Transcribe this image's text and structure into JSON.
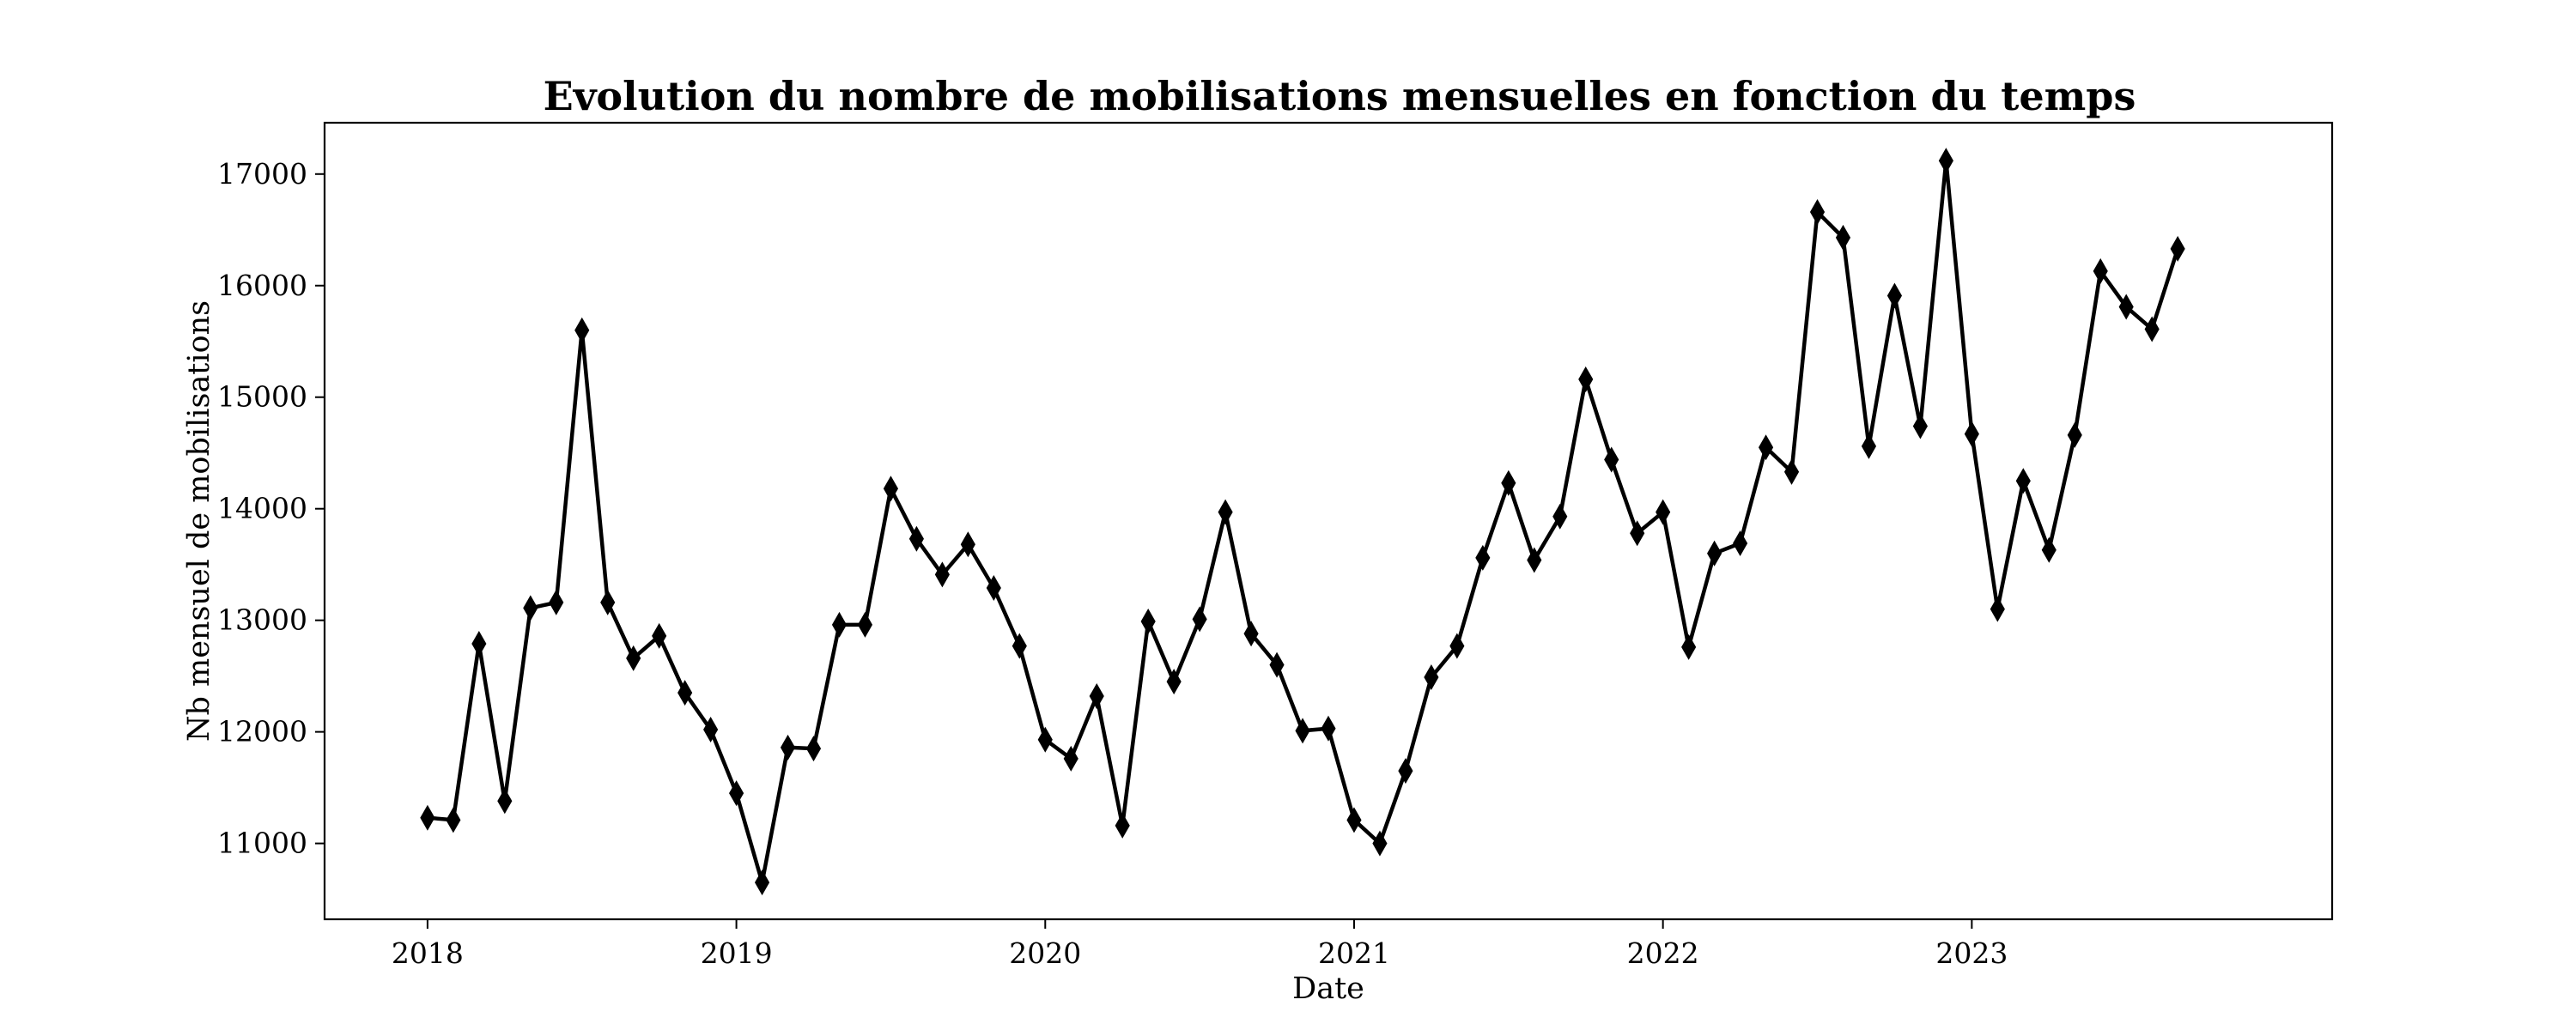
{
  "chart_data": {
    "type": "line",
    "title": "Evolution du nombre de mobilisations mensuelles en fonction du temps",
    "xlabel": "Date",
    "ylabel": "Nb mensuel de mobilisations",
    "x_ticks": [
      "2018",
      "2019",
      "2020",
      "2021",
      "2022",
      "2023"
    ],
    "y_ticks": [
      11000,
      12000,
      13000,
      14000,
      15000,
      16000,
      17000
    ],
    "xlim": [
      "2017-09",
      "2024-03"
    ],
    "ylim": [
      10320,
      17460
    ],
    "grid": false,
    "marker": "thin-diamond",
    "line_color": "#000000",
    "series": [
      {
        "x": [
          "2018-01",
          "2018-02",
          "2018-03",
          "2018-04",
          "2018-05",
          "2018-06",
          "2018-07",
          "2018-08",
          "2018-09",
          "2018-10",
          "2018-11",
          "2018-12",
          "2019-01",
          "2019-02",
          "2019-03",
          "2019-04",
          "2019-05",
          "2019-06",
          "2019-07",
          "2019-08",
          "2019-09",
          "2019-10",
          "2019-11",
          "2019-12",
          "2020-01",
          "2020-02",
          "2020-03",
          "2020-04",
          "2020-05",
          "2020-06",
          "2020-07",
          "2020-08",
          "2020-09",
          "2020-10",
          "2020-11",
          "2020-12",
          "2021-01",
          "2021-02",
          "2021-03",
          "2021-04",
          "2021-05",
          "2021-06",
          "2021-07",
          "2021-08",
          "2021-09",
          "2021-10",
          "2021-11",
          "2021-12",
          "2022-01",
          "2022-02",
          "2022-03",
          "2022-04",
          "2022-05",
          "2022-06",
          "2022-07",
          "2022-08",
          "2022-09",
          "2022-10",
          "2022-11",
          "2022-12",
          "2023-01",
          "2023-02",
          "2023-03",
          "2023-04",
          "2023-05",
          "2023-06",
          "2023-07",
          "2023-08",
          "2023-09"
        ],
        "y": [
          11230,
          11210,
          12790,
          11380,
          13110,
          13160,
          15600,
          13160,
          12660,
          12860,
          12350,
          12020,
          11450,
          10650,
          11860,
          11850,
          12960,
          12960,
          14180,
          13730,
          13410,
          13680,
          13290,
          12770,
          11930,
          11760,
          12320,
          11160,
          12990,
          12450,
          13010,
          13970,
          12880,
          12600,
          12010,
          12030,
          11210,
          11000,
          11650,
          12490,
          12770,
          13560,
          14230,
          13540,
          13930,
          15160,
          14440,
          13780,
          13970,
          12760,
          13600,
          13690,
          14550,
          14330,
          16660,
          16430,
          14560,
          15910,
          14740,
          17120,
          14670,
          13100,
          14250,
          13630,
          14660,
          16130,
          15810,
          15610,
          16330
        ]
      }
    ]
  }
}
